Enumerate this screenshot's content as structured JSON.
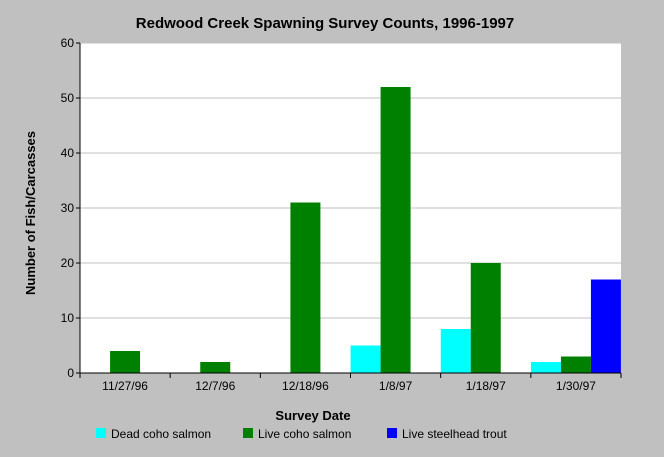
{
  "chart_data": {
    "type": "bar",
    "title": "Redwood Creek Spawning Survey Counts, 1996-1997",
    "xlabel": "Survey Date",
    "ylabel": "Number of Fish/Carcasses",
    "ylim": [
      0,
      60
    ],
    "yticks": [
      0,
      10,
      20,
      30,
      40,
      50,
      60
    ],
    "grid": true,
    "legend_position": "bottom",
    "categories": [
      "11/27/96",
      "12/7/96",
      "12/18/96",
      "1/8/97",
      "1/18/97",
      "1/30/97"
    ],
    "series": [
      {
        "name": "Dead coho salmon",
        "color": "#00ffff",
        "values": [
          0,
          0,
          0,
          5,
          8,
          2
        ]
      },
      {
        "name": "Live coho salmon",
        "color": "#008000",
        "values": [
          4,
          2,
          31,
          52,
          20,
          3
        ]
      },
      {
        "name": "Live steelhead trout",
        "color": "#0000ff",
        "values": [
          0,
          0,
          0,
          0,
          0,
          17
        ]
      }
    ]
  },
  "colors": {
    "background": "#c0c0c0",
    "plot_background": "#ffffff",
    "gridline": "#c0c0c0"
  }
}
